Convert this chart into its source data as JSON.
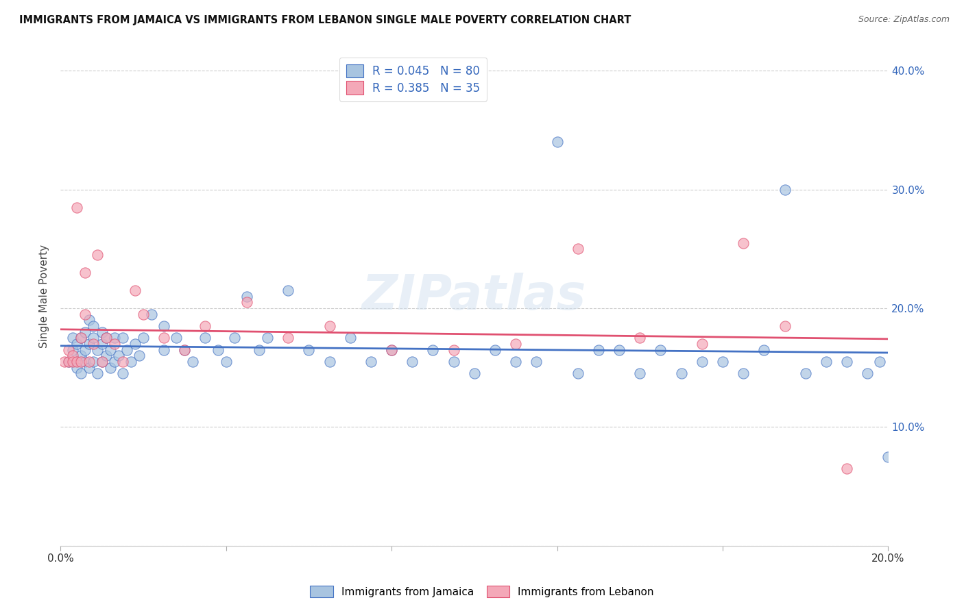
{
  "title": "IMMIGRANTS FROM JAMAICA VS IMMIGRANTS FROM LEBANON SINGLE MALE POVERTY CORRELATION CHART",
  "source": "Source: ZipAtlas.com",
  "ylabel": "Single Male Poverty",
  "legend_jamaica": "Immigrants from Jamaica",
  "legend_lebanon": "Immigrants from Lebanon",
  "r_jamaica": 0.045,
  "n_jamaica": 80,
  "r_lebanon": 0.385,
  "n_lebanon": 35,
  "color_jamaica": "#A8C4E0",
  "color_lebanon": "#F4A8B8",
  "line_color_jamaica": "#4472C4",
  "line_color_lebanon": "#E05070",
  "xlim": [
    0.0,
    0.2
  ],
  "ylim": [
    0.0,
    0.42
  ],
  "x_tick_positions": [
    0.0,
    0.04,
    0.08,
    0.12,
    0.16,
    0.2
  ],
  "x_tick_labels": [
    "0.0%",
    "",
    "",
    "",
    "",
    "20.0%"
  ],
  "y_tick_positions": [
    0.0,
    0.1,
    0.2,
    0.3,
    0.4
  ],
  "y_tick_labels_right": [
    "",
    "10.0%",
    "20.0%",
    "30.0%",
    "40.0%"
  ],
  "watermark_text": "ZIPatlas",
  "background_color": "#FFFFFF",
  "grid_color": "#CCCCCC",
  "jamaica_x": [
    0.002,
    0.003,
    0.003,
    0.004,
    0.004,
    0.005,
    0.005,
    0.005,
    0.006,
    0.006,
    0.006,
    0.007,
    0.007,
    0.007,
    0.008,
    0.008,
    0.008,
    0.009,
    0.009,
    0.01,
    0.01,
    0.01,
    0.011,
    0.011,
    0.012,
    0.012,
    0.013,
    0.013,
    0.014,
    0.015,
    0.015,
    0.016,
    0.017,
    0.018,
    0.019,
    0.02,
    0.022,
    0.025,
    0.025,
    0.028,
    0.03,
    0.032,
    0.035,
    0.038,
    0.04,
    0.042,
    0.045,
    0.048,
    0.05,
    0.055,
    0.06,
    0.065,
    0.07,
    0.075,
    0.08,
    0.085,
    0.09,
    0.095,
    0.1,
    0.105,
    0.11,
    0.115,
    0.12,
    0.125,
    0.13,
    0.135,
    0.14,
    0.145,
    0.15,
    0.155,
    0.16,
    0.165,
    0.17,
    0.175,
    0.18,
    0.185,
    0.19,
    0.195,
    0.198,
    0.2
  ],
  "jamaica_y": [
    0.155,
    0.165,
    0.175,
    0.15,
    0.17,
    0.16,
    0.145,
    0.175,
    0.155,
    0.165,
    0.18,
    0.15,
    0.17,
    0.19,
    0.155,
    0.175,
    0.185,
    0.145,
    0.165,
    0.155,
    0.17,
    0.18,
    0.16,
    0.175,
    0.15,
    0.165,
    0.175,
    0.155,
    0.16,
    0.145,
    0.175,
    0.165,
    0.155,
    0.17,
    0.16,
    0.175,
    0.195,
    0.165,
    0.185,
    0.175,
    0.165,
    0.155,
    0.175,
    0.165,
    0.155,
    0.175,
    0.21,
    0.165,
    0.175,
    0.215,
    0.165,
    0.155,
    0.175,
    0.155,
    0.165,
    0.155,
    0.165,
    0.155,
    0.145,
    0.165,
    0.155,
    0.155,
    0.34,
    0.145,
    0.165,
    0.165,
    0.145,
    0.165,
    0.145,
    0.155,
    0.155,
    0.145,
    0.165,
    0.3,
    0.145,
    0.155,
    0.155,
    0.145,
    0.155,
    0.075
  ],
  "lebanon_x": [
    0.001,
    0.002,
    0.002,
    0.003,
    0.003,
    0.004,
    0.004,
    0.005,
    0.005,
    0.006,
    0.006,
    0.007,
    0.008,
    0.009,
    0.01,
    0.011,
    0.013,
    0.015,
    0.018,
    0.02,
    0.025,
    0.03,
    0.035,
    0.045,
    0.055,
    0.065,
    0.08,
    0.095,
    0.11,
    0.125,
    0.14,
    0.155,
    0.165,
    0.175,
    0.19
  ],
  "lebanon_y": [
    0.155,
    0.155,
    0.165,
    0.16,
    0.155,
    0.155,
    0.285,
    0.175,
    0.155,
    0.23,
    0.195,
    0.155,
    0.17,
    0.245,
    0.155,
    0.175,
    0.17,
    0.155,
    0.215,
    0.195,
    0.175,
    0.165,
    0.185,
    0.205,
    0.175,
    0.185,
    0.165,
    0.165,
    0.17,
    0.25,
    0.175,
    0.17,
    0.255,
    0.185,
    0.065
  ]
}
